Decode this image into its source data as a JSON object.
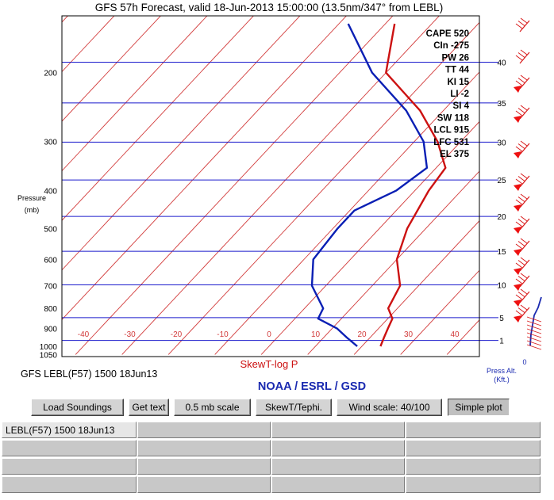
{
  "title": "GFS 57h Forecast, valid 18-Jun-2013 15:00:00 (13.5nm/347° from LEBL)",
  "chart_data": {
    "type": "line",
    "diagram": "SkewT-log P",
    "pressure_axis": {
      "label_line1": "Pressure",
      "label_line2": "(mb)",
      "ticks": [
        200,
        300,
        400,
        500,
        600,
        700,
        800,
        900,
        1000,
        1050
      ]
    },
    "temperature_axis": {
      "ticks": [
        -40,
        -30,
        -20,
        -10,
        0,
        10,
        20,
        30,
        40
      ]
    },
    "altitude_axis": {
      "label_line1": "Press Alt.",
      "label_line2": "(Kft.)",
      "ticks": [
        1,
        5,
        10,
        15,
        20,
        25,
        30,
        35,
        40
      ]
    },
    "series": [
      {
        "name": "",
        "color": "#cc1111",
        "points": [
          [
            1000,
            24
          ],
          [
            950,
            23
          ],
          [
            900,
            22
          ],
          [
            850,
            21
          ],
          [
            800,
            18
          ],
          [
            700,
            16
          ],
          [
            600,
            10
          ],
          [
            500,
            6
          ],
          [
            400,
            3
          ],
          [
            350,
            2
          ],
          [
            300,
            -5
          ],
          [
            250,
            -15
          ],
          [
            200,
            -30
          ],
          [
            150,
            -38
          ]
        ]
      },
      {
        "name": "",
        "color": "#0a1fb4",
        "points": [
          [
            1000,
            19
          ],
          [
            950,
            15
          ],
          [
            900,
            11
          ],
          [
            850,
            5
          ],
          [
            800,
            4
          ],
          [
            700,
            -3
          ],
          [
            600,
            -8
          ],
          [
            500,
            -9
          ],
          [
            450,
            -9
          ],
          [
            400,
            -4
          ],
          [
            350,
            -2
          ],
          [
            300,
            -8
          ],
          [
            250,
            -18
          ],
          [
            200,
            -33
          ],
          [
            150,
            -48
          ]
        ]
      }
    ],
    "indices": [
      {
        "label": "CAPE 520"
      },
      {
        "label": "CIn -275"
      },
      {
        "label": "PW 26"
      },
      {
        "label": "TT 44"
      },
      {
        "label": "KI 15"
      },
      {
        "label": "LI -2"
      },
      {
        "label": "SI 4"
      },
      {
        "label": "SW 118"
      },
      {
        "label": "LCL 915"
      },
      {
        "label": "LFC 531"
      },
      {
        "label": "EL 375"
      }
    ],
    "wind_profile_lower_label": "0",
    "station_label": "GFS LEBL(F57) 1500 18Jun13",
    "credit": "NOAA / ESRL / GSD"
  },
  "buttons": [
    {
      "label": "Load Soundings"
    },
    {
      "label": "Get text"
    },
    {
      "label": "0.5 mb scale"
    },
    {
      "label": "SkewT/Tephi."
    },
    {
      "label": "Wind scale: 40/100"
    },
    {
      "label": "Simple plot"
    }
  ],
  "soundings_list": {
    "selected_label": "LEBL(F57) 1500 18Jun13"
  },
  "colors": {
    "grid_blue": "#1a1acc",
    "skew_red": "#d23b3b",
    "temp_red": "#cc1111",
    "dew_blue": "#0a1fb4",
    "credit_blue": "#1a2ab0"
  }
}
